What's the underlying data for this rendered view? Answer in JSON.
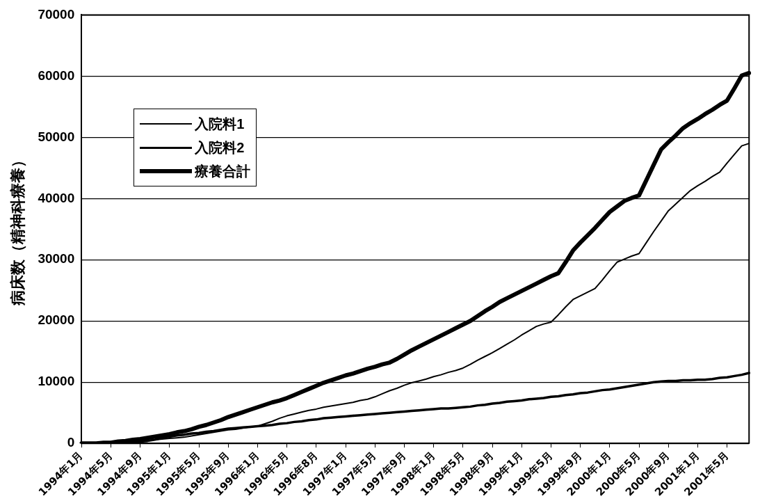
{
  "chart_data": {
    "type": "line",
    "ylabel": "病床数（精神科療養）",
    "categories": [
      "1994年1月",
      null,
      null,
      null,
      "1994年5月",
      null,
      null,
      null,
      "1994年9月",
      null,
      null,
      null,
      "1995年1月",
      null,
      null,
      null,
      "1995年5月",
      null,
      null,
      null,
      "1995年9月",
      null,
      null,
      null,
      "1996年1月",
      null,
      null,
      null,
      "1996年5月",
      null,
      null,
      null,
      "1996年8月",
      null,
      null,
      null,
      "1997年1月",
      null,
      null,
      null,
      "1997年5月",
      null,
      null,
      null,
      "1997年9月",
      null,
      null,
      null,
      "1998年1月",
      null,
      null,
      null,
      "1998年5月",
      null,
      null,
      null,
      "1998年9月",
      null,
      null,
      null,
      "1999年1月",
      null,
      null,
      null,
      "1999年5月",
      null,
      null,
      null,
      "1999年9月",
      null,
      null,
      null,
      "2000年1月",
      null,
      null,
      null,
      "2000年5月",
      null,
      null,
      null,
      "2000年9月",
      null,
      null,
      null,
      "2001年1月",
      null,
      null,
      null,
      "2001年5月",
      null,
      null,
      null
    ],
    "series": [
      {
        "name": "入院料1",
        "color": "#000000",
        "values": [
          0,
          0,
          0,
          0,
          100,
          100,
          200,
          300,
          400,
          500,
          600,
          700,
          800,
          900,
          1000,
          1200,
          1400,
          1600,
          1800,
          2000,
          2200,
          2300,
          2500,
          2700,
          2800,
          3200,
          3600,
          4100,
          4500,
          4800,
          5100,
          5400,
          5600,
          5900,
          6100,
          6300,
          6500,
          6700,
          7000,
          7200,
          7600,
          8100,
          8600,
          9000,
          9500,
          9900,
          10200,
          10500,
          10900,
          11200,
          11600,
          11900,
          12300,
          12900,
          13600,
          14200,
          14800,
          15500,
          16200,
          16900,
          17700,
          18400,
          19100,
          19500,
          19800,
          21000,
          22300,
          23500,
          24100,
          24700,
          25300,
          26700,
          28200,
          29600,
          30100,
          30600,
          31000,
          32800,
          34600,
          36300,
          38000,
          39100,
          40200,
          41300,
          42100,
          42800,
          43600,
          44300,
          45800,
          47200,
          48600,
          49000
        ]
      },
      {
        "name": "入院料2",
        "color": "#000000",
        "values": [
          0,
          0,
          0,
          0,
          100,
          100,
          200,
          300,
          300,
          400,
          600,
          900,
          1100,
          1300,
          1400,
          1600,
          1700,
          1900,
          2000,
          2200,
          2400,
          2500,
          2600,
          2700,
          2800,
          2900,
          3000,
          3200,
          3300,
          3500,
          3600,
          3800,
          3900,
          4100,
          4200,
          4300,
          4400,
          4500,
          4600,
          4700,
          4800,
          4900,
          5000,
          5100,
          5200,
          5300,
          5400,
          5500,
          5600,
          5700,
          5700,
          5800,
          5900,
          6000,
          6200,
          6300,
          6500,
          6600,
          6800,
          6900,
          7000,
          7200,
          7300,
          7400,
          7600,
          7700,
          7900,
          8000,
          8200,
          8300,
          8500,
          8700,
          8800,
          9000,
          9200,
          9400,
          9600,
          9800,
          10000,
          10100,
          10200,
          10200,
          10300,
          10300,
          10400,
          10400,
          10500,
          10700,
          10800,
          11000,
          11200,
          11500
        ]
      },
      {
        "name": "療養合計",
        "color": "#000000",
        "values": [
          0,
          0,
          0,
          100,
          100,
          300,
          400,
          600,
          700,
          900,
          1100,
          1300,
          1500,
          1800,
          2000,
          2300,
          2700,
          3000,
          3400,
          3800,
          4300,
          4700,
          5100,
          5500,
          5900,
          6300,
          6700,
          7000,
          7400,
          7900,
          8400,
          8900,
          9400,
          9900,
          10300,
          10700,
          11100,
          11400,
          11800,
          12200,
          12500,
          12900,
          13200,
          13800,
          14500,
          15200,
          15800,
          16400,
          17000,
          17600,
          18200,
          18800,
          19400,
          20000,
          20800,
          21600,
          22300,
          23100,
          23700,
          24300,
          24900,
          25500,
          26100,
          26700,
          27300,
          27800,
          29600,
          31500,
          32800,
          34000,
          35200,
          36500,
          37800,
          38700,
          39600,
          40100,
          40500,
          43000,
          45500,
          48000,
          49200,
          50300,
          51500,
          52300,
          53000,
          53800,
          54500,
          55300,
          56000,
          58000,
          60100,
          60500
        ]
      }
    ],
    "ylim": [
      0,
      70000
    ],
    "yticks": [
      0,
      10000,
      20000,
      30000,
      40000,
      50000,
      60000,
      70000
    ],
    "grid": "y",
    "legend": "top left",
    "marker": "none",
    "line_style": "solid"
  }
}
